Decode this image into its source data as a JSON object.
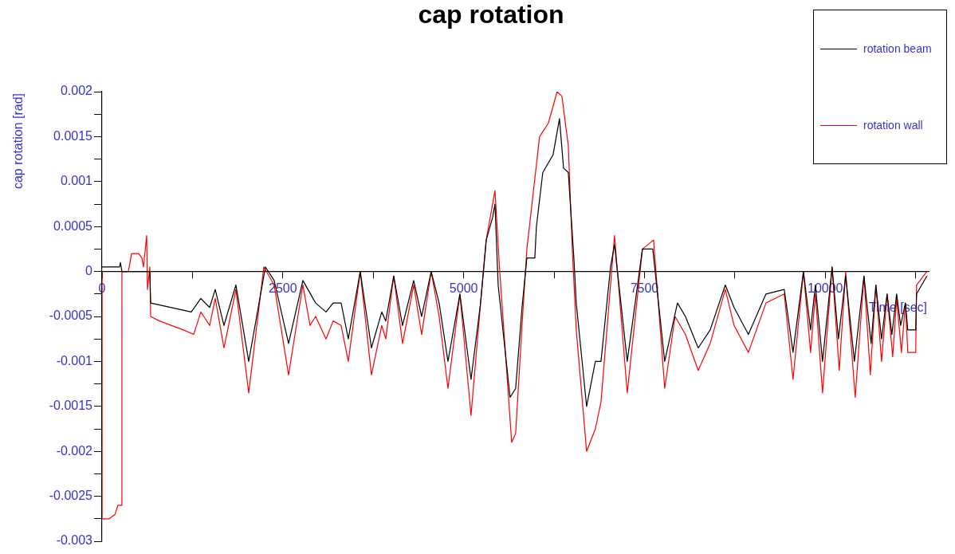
{
  "chart_data": {
    "type": "line",
    "title": "cap rotation",
    "xlabel": "Time [sec]",
    "ylabel": "cap rotation [rad]",
    "legend": "top right",
    "xlim": [
      0,
      11430
    ],
    "xticks": [
      0,
      {
        "value": 1250,
        "label": null
      },
      2500,
      {
        "value": 3750,
        "label": null
      },
      5000,
      {
        "value": 6250,
        "label": null
      },
      7500,
      {
        "value": 8750,
        "label": null
      },
      10000,
      {
        "value": 11250,
        "label": null
      }
    ],
    "ylim": [
      -0.003,
      0.002
    ],
    "yticks": [
      -0.003,
      {
        "value": -0.00275,
        "label": null
      },
      -0.0025,
      {
        "value": -0.00225,
        "label": null
      },
      -0.002,
      {
        "value": -0.00175,
        "label": null
      },
      -0.0015,
      {
        "value": -0.00125,
        "label": null
      },
      -0.001,
      {
        "value": -0.00075,
        "label": null
      },
      -0.0005,
      {
        "value": -0.00025,
        "label": null
      },
      0,
      {
        "value": 0.00025,
        "label": null
      },
      0.0005,
      {
        "value": 0.00075,
        "label": null
      },
      0.001,
      {
        "value": 0.00125,
        "label": null
      },
      0.0015,
      {
        "value": 0.00175,
        "label": null
      },
      0.002
    ],
    "series": [
      {
        "name": "rotation beam",
        "color": "#000000",
        "x": [
          0,
          242,
          254,
          275,
          573,
          661,
          672,
          1234,
          1366,
          1488,
          1565,
          1686,
          1851,
          2028,
          2259,
          2380,
          2579,
          2777,
          2953,
          3097,
          3196,
          3306,
          3405,
          3570,
          3725,
          3868,
          3923,
          4033,
          4155,
          4309,
          4419,
          4551,
          4661,
          4783,
          4948,
          5102,
          5234,
          5312,
          5400,
          5433,
          5477,
          5642,
          5719,
          5807,
          5874,
          5984,
          6006,
          6094,
          6237,
          6325,
          6381,
          6447,
          6524,
          6557,
          6700,
          6821,
          6899,
          7031,
          7086,
          7262,
          7472,
          7615,
          7780,
          7956,
          8066,
          8243,
          8409,
          8618,
          8739,
          8937,
          9180,
          9433,
          9554,
          9698,
          9797,
          9863,
          9962,
          10094,
          10182,
          10282,
          10403,
          10535,
          10634,
          10700,
          10778,
          10855,
          10921,
          10987,
          11042,
          11108,
          11141,
          11251,
          11262,
          11405
        ],
        "values": [
          5e-05,
          5e-05,
          0.0001,
          0,
          0,
          0,
          -0.00035,
          -0.00045,
          -0.0003,
          -0.0004,
          -0.0002,
          -0.0006,
          -0.00015,
          -0.001,
          5e-05,
          -0.0001,
          -0.0008,
          -0.0001,
          -0.00035,
          -0.00045,
          -0.00035,
          -0.00035,
          -0.00075,
          0,
          -0.00085,
          -0.00045,
          -0.00055,
          -5e-05,
          -0.0006,
          -0.0001,
          -0.0005,
          0,
          -0.00035,
          -0.001,
          -0.00025,
          -0.0012,
          -0.00035,
          0.00035,
          0.0006,
          0.00075,
          -0.00015,
          -0.0014,
          -0.0013,
          -0.0004,
          0.00015,
          0.00015,
          0.0005,
          0.0011,
          0.0013,
          0.0017,
          0.00115,
          0.0011,
          0.00015,
          -0.00035,
          -0.0015,
          -0.001,
          -0.001,
          5e-05,
          0.0003,
          -0.001,
          0.00025,
          0.00025,
          -0.001,
          -0.00035,
          -0.0005,
          -0.00085,
          -0.00065,
          -0.00015,
          -0.0004,
          -0.0007,
          -0.00025,
          -0.0002,
          -0.0009,
          0,
          -0.00065,
          -0.00015,
          -0.001,
          5e-05,
          -0.00075,
          -5e-05,
          -0.001,
          -5e-05,
          -0.0008,
          -0.00015,
          -0.00075,
          -0.00025,
          -0.0007,
          -0.00025,
          -0.0006,
          -0.00035,
          -0.00065,
          -0.00065,
          -0.00025,
          -5e-05
        ]
      },
      {
        "name": "rotation wall",
        "color": "#ff0000",
        "x": [
          0,
          0,
          100,
          180,
          220,
          270,
          275,
          364,
          408,
          507,
          551,
          573,
          617,
          628,
          661,
          672,
          793,
          1124,
          1267,
          1366,
          1488,
          1565,
          1686,
          1851,
          2028,
          2237,
          2380,
          2579,
          2777,
          2876,
          2953,
          3097,
          3196,
          3306,
          3405,
          3570,
          3725,
          3868,
          3923,
          4033,
          4155,
          4309,
          4419,
          4551,
          4661,
          4783,
          4948,
          5102,
          5234,
          5312,
          5433,
          5499,
          5664,
          5719,
          5807,
          5874,
          6050,
          6171,
          6292,
          6358,
          6447,
          6502,
          6557,
          6700,
          6821,
          6899,
          7031,
          7086,
          7262,
          7472,
          7626,
          7780,
          7923,
          8066,
          8243,
          8409,
          8618,
          8739,
          8937,
          9180,
          9433,
          9554,
          9698,
          9797,
          9863,
          9962,
          10094,
          10193,
          10282,
          10414,
          10535,
          10623,
          10700,
          10778,
          10855,
          10932,
          10987,
          11053,
          11108,
          11141,
          11251,
          11262,
          11405
        ],
        "values": [
          0,
          -0.00275,
          -0.00275,
          -0.0027,
          -0.0026,
          -0.0026,
          0,
          0,
          0.0002,
          0.0002,
          0.00015,
          5e-05,
          0.0004,
          -0.0002,
          5e-05,
          -0.0005,
          -0.00055,
          -0.00065,
          -0.0007,
          -0.00045,
          -0.0006,
          -0.0003,
          -0.00085,
          -0.0002,
          -0.00135,
          5e-05,
          -0.00015,
          -0.00115,
          -0.00015,
          -0.0006,
          -0.0005,
          -0.00075,
          -0.00055,
          -0.0006,
          -0.001,
          0,
          -0.00115,
          -0.0006,
          -0.00075,
          -5e-05,
          -0.0008,
          -0.00015,
          -0.0007,
          0,
          -0.0005,
          -0.0013,
          -0.00025,
          -0.0016,
          -0.00035,
          0.00035,
          0.0009,
          0,
          -0.0019,
          -0.0018,
          -0.0006,
          0.00025,
          0.0015,
          0.00165,
          0.002,
          0.00195,
          0.0014,
          0.00025,
          -0.00065,
          -0.002,
          -0.00175,
          -0.00145,
          -0.00015,
          0.0004,
          -0.00135,
          0.00025,
          0.00035,
          -0.0013,
          -0.0005,
          -0.0007,
          -0.0011,
          -0.0008,
          -0.0002,
          -0.0006,
          -0.0009,
          -0.00035,
          -0.00025,
          -0.0012,
          0,
          -0.0009,
          -0.00025,
          -0.00135,
          5e-05,
          -0.0011,
          0,
          -0.0014,
          -5e-05,
          -0.00115,
          -0.00015,
          -0.001,
          -0.00025,
          -0.00095,
          -0.0003,
          -0.0009,
          -0.00035,
          -0.0009,
          -0.0009,
          -0.00015,
          0
        ]
      }
    ]
  }
}
